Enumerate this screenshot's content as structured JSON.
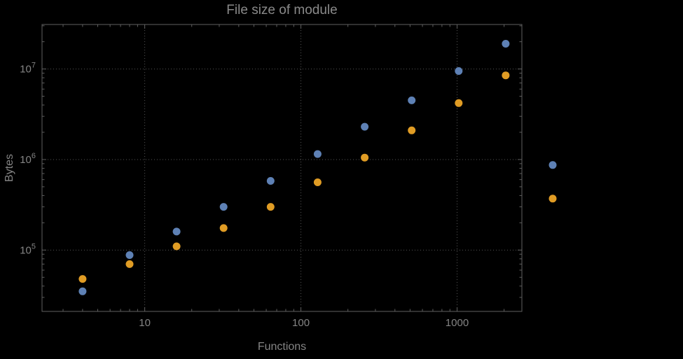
{
  "chart_data": {
    "type": "scatter",
    "title": "File size of module",
    "xlabel": "Functions",
    "ylabel": "Bytes",
    "x_scale": "log",
    "y_scale": "log",
    "xlim": [
      2.2,
      2600
    ],
    "ylim": [
      21000,
      31000000
    ],
    "grid": "dotted gray lines at decade ticks",
    "legend": "none",
    "x_ticks": {
      "values": [
        10,
        100,
        1000
      ],
      "labels": [
        "10",
        "100",
        "1000"
      ]
    },
    "y_ticks": [
      {
        "value": 100000,
        "base": "10",
        "exp": "5"
      },
      {
        "value": 1000000,
        "base": "10",
        "exp": "6"
      },
      {
        "value": 10000000,
        "base": "10",
        "exp": "7"
      }
    ],
    "colors": {
      "background": "#000000",
      "frame": "#5f5f5f",
      "grid": "#555555",
      "text": "#848484",
      "title": "#8a8a8a",
      "series_blue": "#5E81B5",
      "series_orange": "#E09C24"
    },
    "series": [
      {
        "name": "blue",
        "color": "#5E81B5",
        "x": [
          4,
          8,
          16,
          32,
          64,
          128,
          256,
          512,
          1024,
          2048,
          4096
        ],
        "y": [
          35000,
          88000,
          160000,
          300000,
          580000,
          1150000,
          2300000,
          4500000,
          9500000,
          19000000,
          870000
        ]
      },
      {
        "name": "orange",
        "color": "#E09C24",
        "x": [
          4,
          8,
          16,
          32,
          64,
          128,
          256,
          512,
          1024,
          2048,
          4096
        ],
        "y": [
          48000,
          70000,
          110000,
          175000,
          300000,
          560000,
          1050000,
          2100000,
          4200000,
          8500000,
          370000
        ]
      }
    ]
  }
}
